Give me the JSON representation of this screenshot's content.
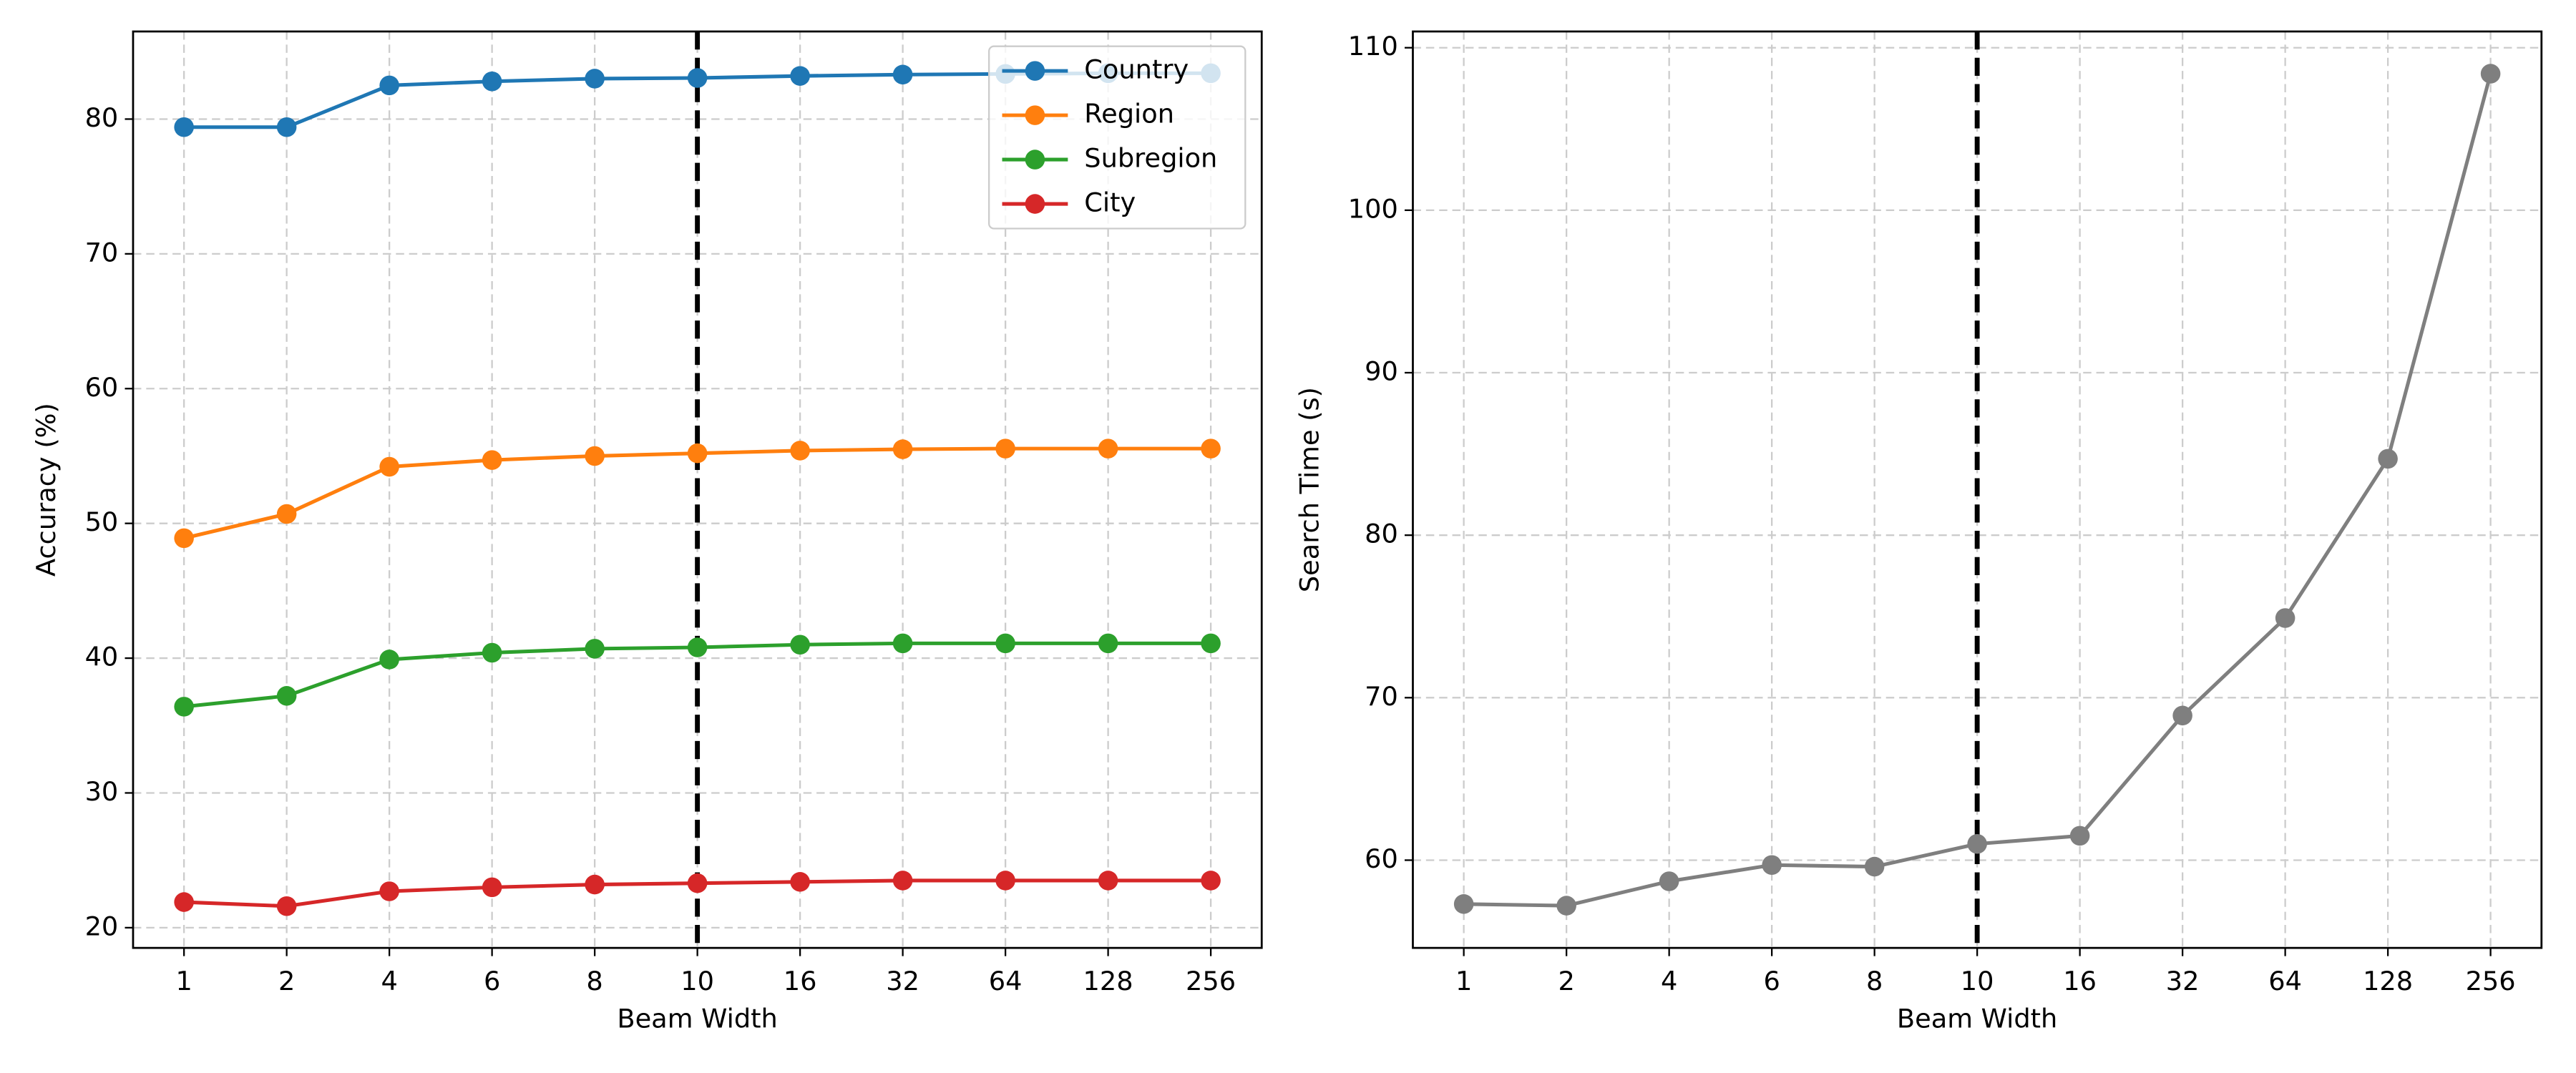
{
  "chart_data": [
    {
      "type": "line",
      "xlabel": "Beam Width",
      "ylabel": "Accuracy (%)",
      "categories": [
        "1",
        "2",
        "4",
        "6",
        "8",
        "10",
        "16",
        "32",
        "64",
        "128",
        "256"
      ],
      "series": [
        {
          "name": "Country",
          "color": "#1f77b4",
          "values": [
            79.4,
            79.4,
            82.5,
            82.8,
            83.0,
            83.05,
            83.2,
            83.3,
            83.35,
            83.4,
            83.4
          ]
        },
        {
          "name": "Region",
          "color": "#ff7f0e",
          "values": [
            48.9,
            50.7,
            54.2,
            54.7,
            55.0,
            55.2,
            55.4,
            55.5,
            55.55,
            55.55,
            55.55
          ]
        },
        {
          "name": "Subregion",
          "color": "#2ca02c",
          "values": [
            36.4,
            37.2,
            39.9,
            40.4,
            40.7,
            40.8,
            41.0,
            41.1,
            41.1,
            41.1,
            41.1
          ]
        },
        {
          "name": "City",
          "color": "#d62728",
          "values": [
            21.9,
            21.6,
            22.7,
            23.0,
            23.2,
            23.3,
            23.4,
            23.5,
            23.5,
            23.5,
            23.5
          ]
        }
      ],
      "ylim": [
        18.5,
        86.5
      ],
      "yticks": [
        20,
        30,
        40,
        50,
        60,
        70,
        80
      ],
      "vline": "10",
      "grid": true,
      "legend": "upper right"
    },
    {
      "type": "line",
      "xlabel": "Beam Width",
      "ylabel": "Search Time (s)",
      "categories": [
        "1",
        "2",
        "4",
        "6",
        "8",
        "10",
        "16",
        "32",
        "64",
        "128",
        "256"
      ],
      "series": [
        {
          "color": "#7f7f7f",
          "values": [
            57.3,
            57.2,
            58.7,
            59.7,
            59.6,
            61.0,
            61.5,
            68.9,
            74.9,
            84.7,
            108.4
          ]
        }
      ],
      "ylim": [
        54.6,
        111
      ],
      "yticks": [
        60,
        70,
        80,
        90,
        100,
        110
      ],
      "vline": "10",
      "grid": true
    }
  ]
}
